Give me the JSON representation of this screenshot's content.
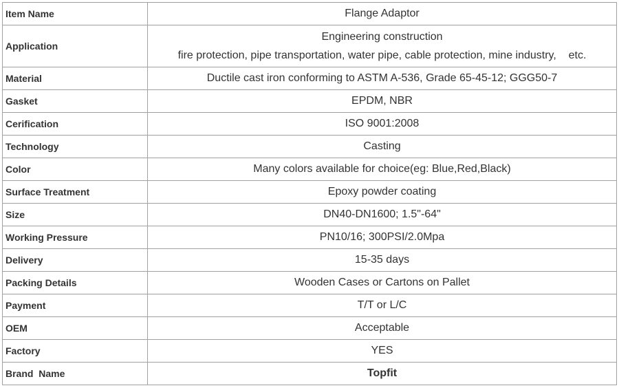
{
  "rows": [
    {
      "label": "Item Name",
      "value": "Flange Adaptor"
    },
    {
      "label": "Application",
      "value": "Engineering construction",
      "value2": "fire protection, pipe transportation, water pipe, cable protection, mine industry,    etc."
    },
    {
      "label": "Material",
      "value": "Ductile cast iron conforming to ASTM A-536, Grade 65-45-12; GGG50-7"
    },
    {
      "label": "Gasket",
      "value": "EPDM, NBR"
    },
    {
      "label": "Cerification",
      "value": "ISO 9001:2008"
    },
    {
      "label": "Technology",
      "value": "Casting"
    },
    {
      "label": "Color",
      "value": "Many colors available for choice(eg: Blue,Red,Black)"
    },
    {
      "label": "Surface Treatment",
      "value": "Epoxy powder coating"
    },
    {
      "label": "Size",
      "value": "DN40-DN1600; 1.5\"-64\""
    },
    {
      "label": "Working Pressure",
      "value": "PN10/16; 300PSI/2.0Mpa"
    },
    {
      "label": "Delivery",
      "value": "15-35 days"
    },
    {
      "label": "Packing Details",
      "value": "Wooden Cases or Cartons on Pallet"
    },
    {
      "label": "Payment",
      "value": "T/T or L/C"
    },
    {
      "label": "OEM",
      "value": "Acceptable"
    },
    {
      "label": "Factory",
      "value": "YES"
    },
    {
      "label": "Brand  Name",
      "value": "Topfit"
    }
  ]
}
